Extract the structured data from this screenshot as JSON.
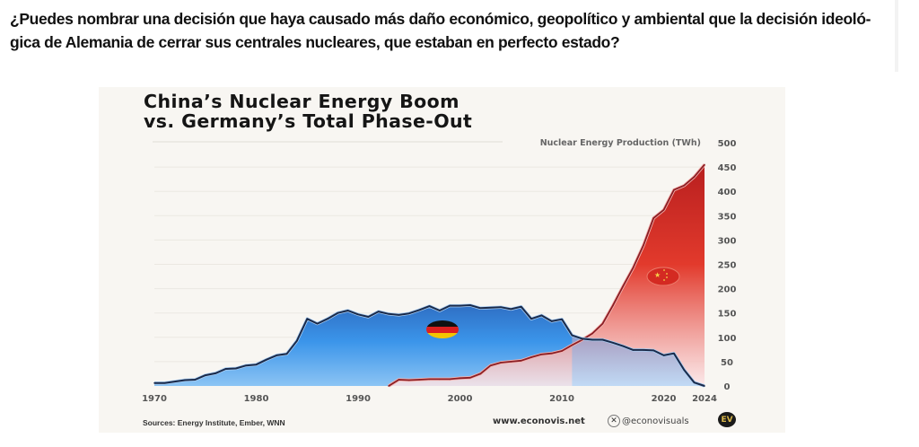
{
  "question": "¿Puedes nombrar una decisión que haya causado más daño económico, geopolítico y ambiental que la decisión ideoló-gica de Alemania de cerrar sus centrales nucleares, que estaban en perfecto estado?",
  "question_lines": [
    "¿Puedes nombrar una decisión que haya causado más daño económico, geopolítico y ambiental que la decisión ideoló-",
    "gica de Alemania de cerrar sus centrales nucleares, que estaban en perfecto estado?"
  ],
  "footer": {
    "sources": "Sources: Energy Institute, Ember, WNN",
    "website": "www.econovis.net",
    "handle": "@econovisuals",
    "x_icon": "x-logo-icon",
    "logo_text": "EV"
  },
  "chart_data": {
    "type": "area",
    "title_lines": [
      "China’s Nuclear Energy Boom",
      "vs. Germany’s Total Phase-Out"
    ],
    "title": "China’s Nuclear Energy Boom vs. Germany’s Total Phase-Out",
    "ylabel": "Nuclear Energy Production (TWh)",
    "xlabel": "",
    "ylim": [
      0,
      500
    ],
    "xlim": [
      1970,
      2024
    ],
    "yticks": [
      0,
      50,
      100,
      150,
      200,
      250,
      300,
      350,
      400,
      450,
      500
    ],
    "xticks": [
      1970,
      1980,
      1990,
      2000,
      2010,
      2020,
      2024
    ],
    "grid": true,
    "y_axis_side": "right",
    "legend": "flag icons inside areas (Germany flag on blue area, China flag on red area)",
    "colors": {
      "germany": "#3b8fe0",
      "germany_line": "#1a2a4a",
      "china": "#d9312a",
      "china_line": "#8b1e24"
    },
    "series": [
      {
        "name": "Germany",
        "x": [
          1970,
          1971,
          1972,
          1973,
          1974,
          1975,
          1976,
          1977,
          1978,
          1979,
          1980,
          1981,
          1982,
          1983,
          1984,
          1985,
          1986,
          1987,
          1988,
          1989,
          1990,
          1991,
          1992,
          1993,
          1994,
          1995,
          1996,
          1997,
          1998,
          1999,
          2000,
          2001,
          2002,
          2003,
          2004,
          2005,
          2006,
          2007,
          2008,
          2009,
          2010,
          2011,
          2012,
          2013,
          2014,
          2015,
          2016,
          2017,
          2018,
          2019,
          2020,
          2021,
          2022,
          2023,
          2024
        ],
        "values": [
          6,
          6,
          9,
          12,
          13,
          22,
          26,
          35,
          36,
          42,
          44,
          54,
          63,
          66,
          93,
          138,
          128,
          138,
          150,
          155,
          147,
          142,
          153,
          148,
          146,
          149,
          156,
          164,
          155,
          165,
          165,
          166,
          160,
          161,
          162,
          158,
          163,
          138,
          145,
          133,
          137,
          104,
          97,
          95,
          95,
          89,
          82,
          74,
          74,
          73,
          63,
          67,
          33,
          7,
          0
        ]
      },
      {
        "name": "China",
        "x": [
          1993,
          1994,
          1995,
          1996,
          1997,
          1998,
          1999,
          2000,
          2001,
          2002,
          2003,
          2004,
          2005,
          2006,
          2007,
          2008,
          2009,
          2010,
          2011,
          2012,
          2013,
          2014,
          2015,
          2016,
          2017,
          2018,
          2019,
          2020,
          2021,
          2022,
          2023,
          2024
        ],
        "values": [
          0,
          13,
          12,
          13,
          14,
          14,
          14,
          16,
          17,
          25,
          42,
          48,
          50,
          52,
          59,
          65,
          67,
          72,
          84,
          95,
          108,
          128,
          165,
          205,
          243,
          289,
          345,
          362,
          403,
          412,
          430,
          455
        ]
      }
    ]
  }
}
